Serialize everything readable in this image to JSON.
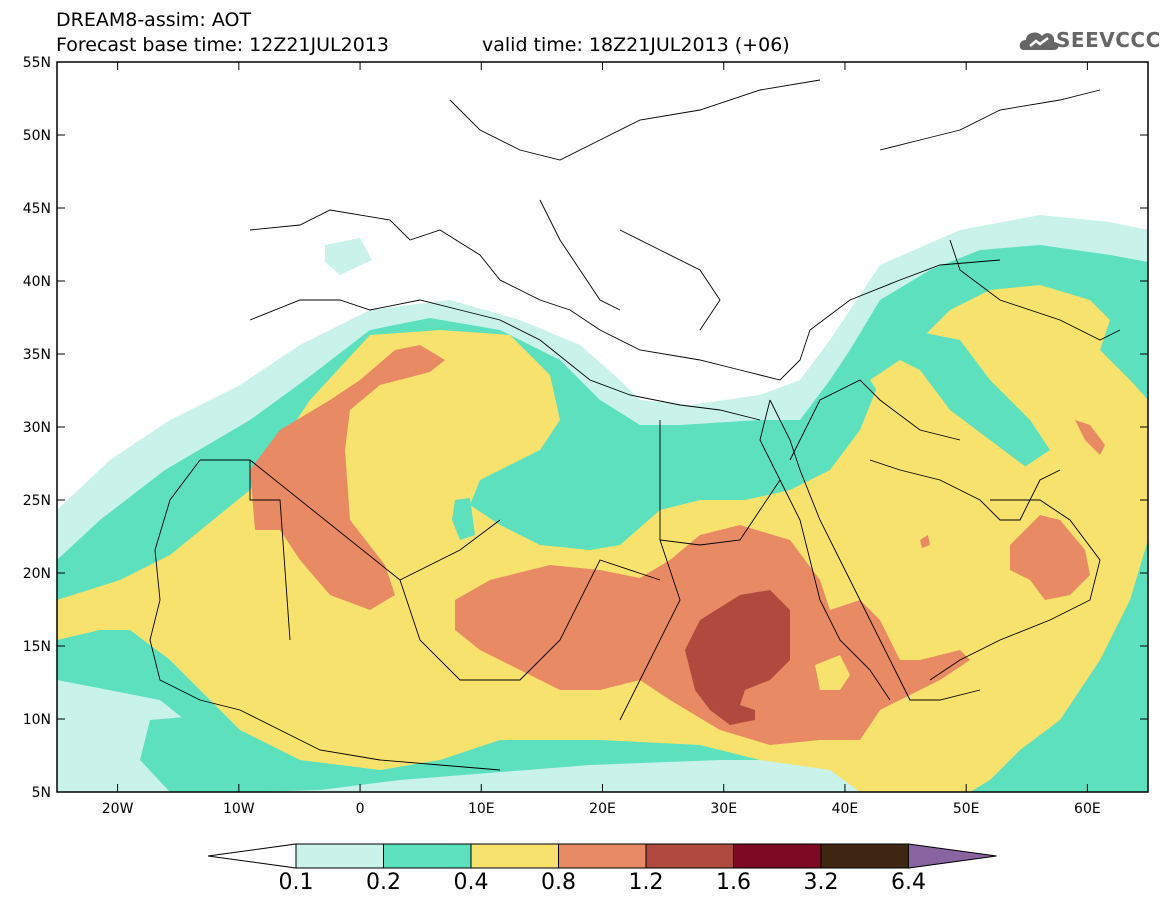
{
  "header": {
    "line1": "DREAM8-assim: AOT",
    "line2": "Forecast base time: 12Z21JUL2013",
    "line3": "valid time: 18Z21JUL2013 (+06)",
    "logo_text": "SEEVCCC"
  },
  "map": {
    "lat_labels": [
      "55N",
      "50N",
      "45N",
      "40N",
      "35N",
      "30N",
      "25N",
      "20N",
      "15N",
      "10N",
      "5N"
    ],
    "lon_labels": [
      "20W",
      "10W",
      "0",
      "10E",
      "20E",
      "30E",
      "40E",
      "50E",
      "60E"
    ],
    "lat_range": [
      5,
      55
    ],
    "lon_range": [
      -25,
      65
    ],
    "field": "AOT"
  },
  "legend": {
    "levels": [
      "0.1",
      "0.2",
      "0.4",
      "0.8",
      "1.2",
      "1.6",
      "3.2",
      "6.4"
    ],
    "colors": [
      "#ffffff",
      "#c8f2ea",
      "#5ce0be",
      "#f7e26e",
      "#e88a64",
      "#b04a3e",
      "#7d0a25",
      "#3e2613",
      "#8a64a0"
    ]
  }
}
